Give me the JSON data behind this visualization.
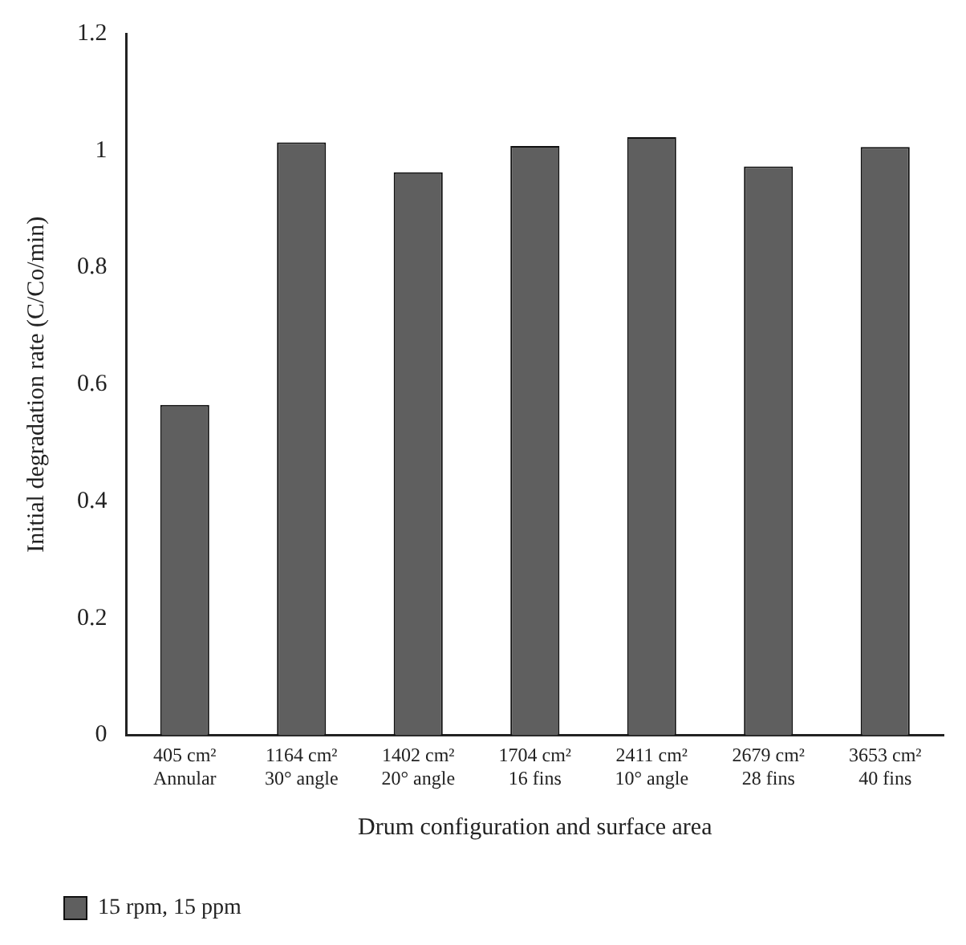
{
  "chart_data": {
    "type": "bar",
    "xlabel": "Drum configuration and surface area",
    "ylabel": "Initial degradation rate (C/Co/min)",
    "categories": [
      "405 cm²\nAnnular",
      "1164 cm²\n30° angle",
      "1402 cm²\n20° angle",
      "1704 cm²\n16 fins",
      "2411 cm²\n10° angle",
      "2679 cm²\n28 fins",
      "3653 cm²\n40 fins"
    ],
    "series": [
      {
        "name": "15 rpm, 15 ppm",
        "color": "#5f5f5f",
        "values": [
          0.565,
          1.014,
          0.963,
          1.008,
          1.023,
          0.973,
          1.006
        ]
      }
    ],
    "ylim": [
      0,
      1.2
    ],
    "yticks": [
      0,
      0.2,
      0.4,
      0.6,
      0.8,
      1,
      1.2
    ],
    "grid": false,
    "legend": "bottom left"
  }
}
